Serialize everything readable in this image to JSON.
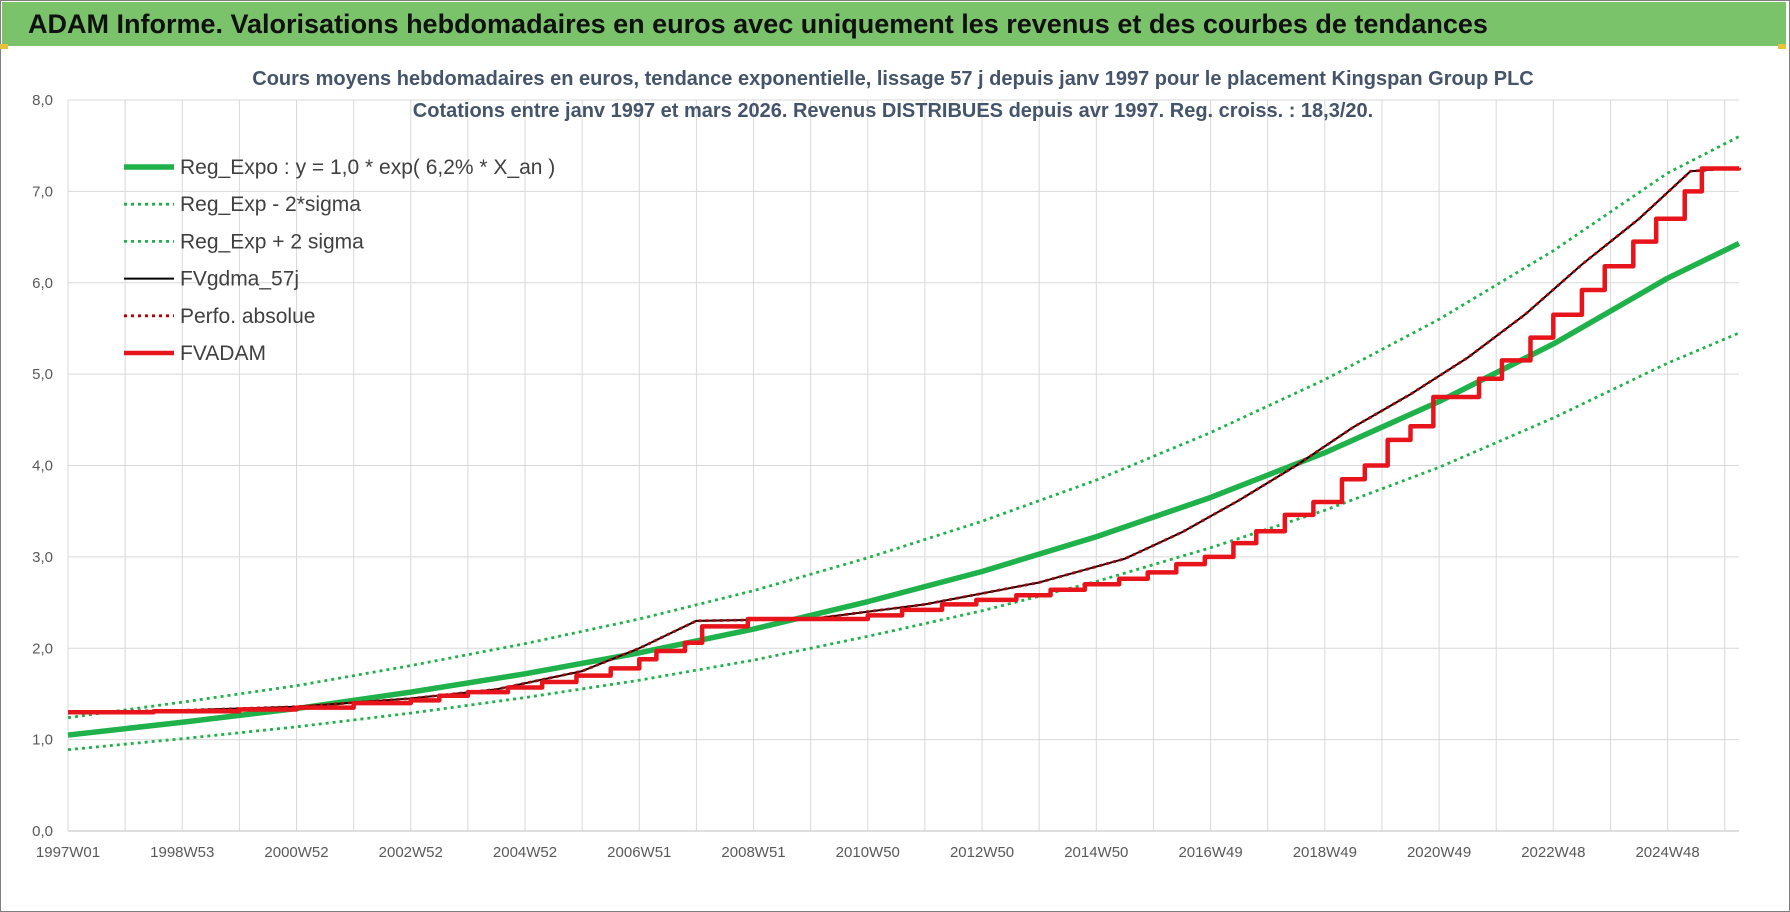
{
  "header": {
    "title": "ADAM Informe. Valorisations hebdomadaires en euros avec uniquement les revenus et des courbes de tendances"
  },
  "chart_data": {
    "type": "line",
    "title": "Cours moyens hebdomadaires en euros, tendance exponentielle, lissage 57 j depuis janv 1997 pour le placement Kingspan Group PLC",
    "subtitle": "Cotations entre janv 1997 et mars 2026. Revenus DISTRIBUES depuis avr 1997. Reg. croiss. : 18,3/20.",
    "xlabel": "",
    "ylabel": "",
    "x_ticks": [
      "1997W01",
      "1998W53",
      "2000W52",
      "2002W52",
      "2004W52",
      "2006W51",
      "2008W51",
      "2010W50",
      "2012W50",
      "2014W50",
      "2016W49",
      "2018W49",
      "2020W49",
      "2022W48",
      "2024W48"
    ],
    "x_range_years": [
      1997.0,
      2026.25
    ],
    "ylim": [
      0,
      8
    ],
    "y_ticks": [
      "0,0",
      "1,0",
      "2,0",
      "3,0",
      "4,0",
      "5,0",
      "6,0",
      "7,0",
      "8,0"
    ],
    "grid": true,
    "legend_position": "top-left",
    "series": [
      {
        "name": "Reg_Expo : y = 1,0 * exp( 6,2% *  X_an )",
        "style": "solid-thick",
        "color": "#1fb14a",
        "points": [
          [
            1997.0,
            1.05
          ],
          [
            1999.0,
            1.19
          ],
          [
            2001.0,
            1.34
          ],
          [
            2003.0,
            1.52
          ],
          [
            2005.0,
            1.72
          ],
          [
            2007.0,
            1.95
          ],
          [
            2009.0,
            2.21
          ],
          [
            2011.0,
            2.51
          ],
          [
            2013.0,
            2.84
          ],
          [
            2015.0,
            3.22
          ],
          [
            2017.0,
            3.65
          ],
          [
            2019.0,
            4.14
          ],
          [
            2021.0,
            4.7
          ],
          [
            2023.0,
            5.33
          ],
          [
            2025.0,
            6.05
          ],
          [
            2026.25,
            6.43
          ]
        ]
      },
      {
        "name": "Reg_Exp - 2*sigma",
        "style": "dotted",
        "color": "#1fb14a",
        "points": [
          [
            1997.0,
            0.89
          ],
          [
            1999.0,
            1.01
          ],
          [
            2001.0,
            1.14
          ],
          [
            2003.0,
            1.29
          ],
          [
            2005.0,
            1.46
          ],
          [
            2007.0,
            1.65
          ],
          [
            2009.0,
            1.87
          ],
          [
            2011.0,
            2.13
          ],
          [
            2013.0,
            2.41
          ],
          [
            2015.0,
            2.73
          ],
          [
            2017.0,
            3.1
          ],
          [
            2019.0,
            3.51
          ],
          [
            2021.0,
            3.98
          ],
          [
            2023.0,
            4.52
          ],
          [
            2025.0,
            5.12
          ],
          [
            2026.25,
            5.45
          ]
        ]
      },
      {
        "name": "Reg_Exp + 2 sigma",
        "style": "dotted",
        "color": "#1fb14a",
        "points": [
          [
            1997.0,
            1.24
          ],
          [
            1999.0,
            1.41
          ],
          [
            2001.0,
            1.59
          ],
          [
            2003.0,
            1.81
          ],
          [
            2005.0,
            2.05
          ],
          [
            2007.0,
            2.32
          ],
          [
            2009.0,
            2.63
          ],
          [
            2011.0,
            2.99
          ],
          [
            2013.0,
            3.39
          ],
          [
            2015.0,
            3.84
          ],
          [
            2017.0,
            4.36
          ],
          [
            2019.0,
            4.94
          ],
          [
            2021.0,
            5.6
          ],
          [
            2023.0,
            6.35
          ],
          [
            2025.0,
            7.2
          ],
          [
            2026.25,
            7.6
          ]
        ]
      },
      {
        "name": "FVgdma_57j",
        "style": "solid-thin",
        "color": "#000000",
        "points": [
          [
            1997.0,
            1.3
          ],
          [
            1999.0,
            1.32
          ],
          [
            2001.0,
            1.36
          ],
          [
            2003.0,
            1.45
          ],
          [
            2004.5,
            1.55
          ],
          [
            2006.0,
            1.75
          ],
          [
            2007.0,
            2.0
          ],
          [
            2008.0,
            2.3
          ],
          [
            2010.0,
            2.32
          ],
          [
            2012.0,
            2.48
          ],
          [
            2014.0,
            2.72
          ],
          [
            2015.5,
            2.98
          ],
          [
            2016.5,
            3.27
          ],
          [
            2017.5,
            3.62
          ],
          [
            2018.5,
            4.0
          ],
          [
            2019.5,
            4.42
          ],
          [
            2020.5,
            4.78
          ],
          [
            2021.5,
            5.18
          ],
          [
            2022.5,
            5.65
          ],
          [
            2023.5,
            6.2
          ],
          [
            2024.5,
            6.7
          ],
          [
            2025.4,
            7.22
          ],
          [
            2026.25,
            7.26
          ]
        ]
      },
      {
        "name": "Perfo. absolue",
        "style": "dotted",
        "color": "#c00000",
        "points": [
          [
            1997.0,
            1.3
          ],
          [
            1999.0,
            1.32
          ],
          [
            2001.0,
            1.36
          ],
          [
            2003.0,
            1.45
          ],
          [
            2004.5,
            1.55
          ],
          [
            2006.0,
            1.75
          ],
          [
            2007.0,
            2.0
          ],
          [
            2008.0,
            2.3
          ],
          [
            2010.0,
            2.32
          ],
          [
            2012.0,
            2.48
          ],
          [
            2014.0,
            2.72
          ],
          [
            2015.5,
            2.98
          ],
          [
            2016.5,
            3.27
          ],
          [
            2017.5,
            3.62
          ],
          [
            2018.5,
            4.0
          ],
          [
            2019.5,
            4.42
          ],
          [
            2020.5,
            4.78
          ],
          [
            2021.5,
            5.18
          ],
          [
            2022.5,
            5.65
          ],
          [
            2023.5,
            6.2
          ],
          [
            2024.5,
            6.7
          ],
          [
            2025.4,
            7.22
          ],
          [
            2026.25,
            7.26
          ]
        ]
      },
      {
        "name": "FVADAM",
        "style": "step-thick",
        "color": "#e8141b",
        "points": [
          [
            1997.0,
            1.3
          ],
          [
            1998.5,
            1.31
          ],
          [
            2000.0,
            1.33
          ],
          [
            2001.0,
            1.35
          ],
          [
            2002.0,
            1.4
          ],
          [
            2003.0,
            1.43
          ],
          [
            2003.5,
            1.48
          ],
          [
            2004.0,
            1.52
          ],
          [
            2004.7,
            1.57
          ],
          [
            2005.3,
            1.63
          ],
          [
            2005.9,
            1.7
          ],
          [
            2006.5,
            1.78
          ],
          [
            2007.0,
            1.88
          ],
          [
            2007.3,
            1.97
          ],
          [
            2007.8,
            2.06
          ],
          [
            2008.1,
            2.24
          ],
          [
            2008.9,
            2.32
          ],
          [
            2011.0,
            2.36
          ],
          [
            2011.6,
            2.42
          ],
          [
            2012.3,
            2.48
          ],
          [
            2012.9,
            2.53
          ],
          [
            2013.6,
            2.58
          ],
          [
            2014.2,
            2.64
          ],
          [
            2014.8,
            2.7
          ],
          [
            2015.4,
            2.76
          ],
          [
            2015.9,
            2.83
          ],
          [
            2016.4,
            2.92
          ],
          [
            2016.9,
            3.0
          ],
          [
            2017.4,
            3.15
          ],
          [
            2017.8,
            3.28
          ],
          [
            2018.3,
            3.46
          ],
          [
            2018.8,
            3.6
          ],
          [
            2019.3,
            3.85
          ],
          [
            2019.7,
            4.0
          ],
          [
            2020.1,
            4.28
          ],
          [
            2020.5,
            4.43
          ],
          [
            2020.9,
            4.75
          ],
          [
            2021.7,
            4.95
          ],
          [
            2022.1,
            5.15
          ],
          [
            2022.6,
            5.4
          ],
          [
            2023.0,
            5.65
          ],
          [
            2023.5,
            5.92
          ],
          [
            2023.9,
            6.18
          ],
          [
            2024.4,
            6.45
          ],
          [
            2024.8,
            6.7
          ],
          [
            2025.3,
            7.0
          ],
          [
            2025.6,
            7.25
          ],
          [
            2026.25,
            7.26
          ]
        ]
      }
    ]
  }
}
